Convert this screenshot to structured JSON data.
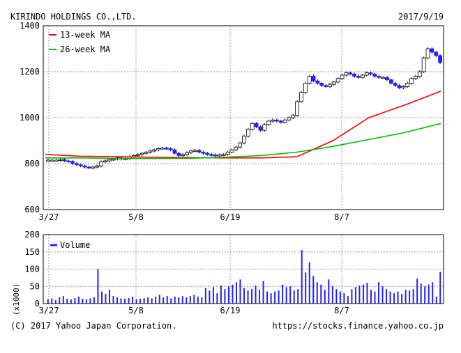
{
  "header": {
    "company": "KIRINDO HOLDINGS CO.,LTD.",
    "date": "2017/9/19"
  },
  "footer": {
    "copyright": "(C) 2017 Yahoo Japan Corporation.",
    "url": "https://stocks.finance.yahoo.co.jp"
  },
  "colors": {
    "up": "#ffffff",
    "down": "#2222ff",
    "ma13": "#ff0000",
    "ma26": "#00bb00",
    "volume": "#2222ff",
    "grid": "#9a9a9a"
  },
  "chart_data": [
    {
      "type": "candlestick",
      "title": "KIRINDO HOLDINGS CO.,LTD.",
      "x_tick_labels": [
        "3/27",
        "5/8",
        "6/19",
        "8/7"
      ],
      "y_ticks": [
        600,
        800,
        1000,
        1200,
        1400
      ],
      "ylim": [
        600,
        1400
      ],
      "legend_position": "top-left",
      "legend": [
        "13-week MA",
        "26-week MA"
      ],
      "grid": true,
      "price_series": [
        815,
        815,
        815,
        818,
        812,
        810,
        800,
        795,
        790,
        785,
        782,
        785,
        790,
        808,
        812,
        818,
        820,
        825,
        820,
        822,
        830,
        835,
        840,
        845,
        850,
        855,
        860,
        865,
        868,
        865,
        860,
        845,
        835,
        840,
        848,
        855,
        858,
        850,
        845,
        840,
        838,
        835,
        838,
        840,
        850,
        860,
        872,
        890,
        920,
        950,
        975,
        960,
        945,
        970,
        985,
        990,
        985,
        980,
        990,
        1000,
        1010,
        1070,
        1110,
        1150,
        1180,
        1160,
        1150,
        1140,
        1135,
        1145,
        1155,
        1170,
        1185,
        1195,
        1190,
        1180,
        1175,
        1185,
        1195,
        1190,
        1180,
        1175,
        1175,
        1165,
        1150,
        1140,
        1130,
        1135,
        1150,
        1170,
        1180,
        1200,
        1260,
        1300,
        1285,
        1270,
        1240
      ],
      "ma13": {
        "name": "13-week MA",
        "values": [
          840,
          832,
          830,
          828,
          826,
          825,
          825,
          830,
          900,
          1000,
          1055,
          1115
        ]
      },
      "ma26": {
        "name": "26-week MA",
        "values": [
          825,
          825,
          822,
          822,
          823,
          828,
          835,
          850,
          875,
          905,
          935,
          975
        ]
      }
    },
    {
      "type": "bar",
      "legend": [
        "Volume"
      ],
      "ylabel": "(x1000)",
      "y_ticks": [
        0,
        50,
        100,
        150,
        200
      ],
      "ylim": [
        0,
        200
      ],
      "x_tick_labels": [
        "3/27",
        "5/8",
        "6/19",
        "8/7"
      ],
      "values": [
        12,
        15,
        10,
        18,
        22,
        14,
        12,
        16,
        20,
        14,
        12,
        15,
        18,
        100,
        35,
        28,
        40,
        22,
        18,
        15,
        14,
        16,
        20,
        12,
        14,
        16,
        18,
        15,
        20,
        25,
        18,
        22,
        15,
        20,
        18,
        22,
        18,
        22,
        25,
        20,
        18,
        45,
        38,
        48,
        30,
        52,
        42,
        50,
        55,
        62,
        70,
        45,
        38,
        42,
        52,
        40,
        65,
        35,
        30,
        35,
        38,
        55,
        48,
        50,
        38,
        42,
        155,
        90,
        120,
        80,
        62,
        55,
        40,
        70,
        50,
        42,
        35,
        30,
        22,
        42,
        48,
        52,
        55,
        60,
        40,
        35,
        62,
        50,
        42,
        35,
        30,
        35,
        28,
        40,
        38,
        42,
        72,
        58,
        50,
        55,
        62,
        20,
        92
      ]
    }
  ]
}
